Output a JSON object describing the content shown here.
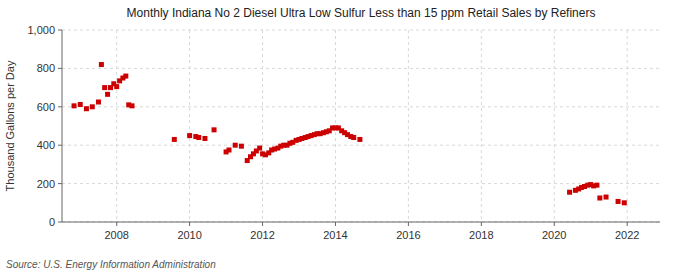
{
  "chart_data": {
    "type": "scatter",
    "title": "Monthly Indiana No 2 Diesel Ultra Low Sulfur Less than 15 ppm Retail Sales by Refiners",
    "ylabel": "Thousand Gallons per Day",
    "source": "Source: U.S. Energy Information Administration",
    "color": "#cc0000",
    "marker": "square",
    "grid": true,
    "xlim": [
      2006.5,
      2022.9
    ],
    "ylim": [
      0,
      1000
    ],
    "xticks": [
      2008,
      2010,
      2012,
      2014,
      2016,
      2018,
      2020,
      2022
    ],
    "yticks": [
      0,
      200,
      400,
      600,
      800,
      {
        "value": 1000,
        "label": "1,000"
      }
    ],
    "x": [
      2006.83,
      2007.0,
      2007.17,
      2007.33,
      2007.5,
      2007.58,
      2007.67,
      2007.75,
      2007.83,
      2007.92,
      2008.0,
      2008.08,
      2008.17,
      2008.25,
      2008.33,
      2008.42,
      2009.58,
      2010.0,
      2010.17,
      2010.25,
      2010.42,
      2010.67,
      2011.0,
      2011.08,
      2011.25,
      2011.42,
      2011.58,
      2011.67,
      2011.75,
      2011.83,
      2011.92,
      2012.0,
      2012.08,
      2012.17,
      2012.25,
      2012.33,
      2012.42,
      2012.5,
      2012.58,
      2012.67,
      2012.75,
      2012.83,
      2012.92,
      2013.0,
      2013.08,
      2013.17,
      2013.25,
      2013.33,
      2013.42,
      2013.5,
      2013.58,
      2013.67,
      2013.75,
      2013.83,
      2013.92,
      2014.0,
      2014.08,
      2014.17,
      2014.25,
      2014.33,
      2014.42,
      2014.5,
      2014.67,
      2020.42,
      2020.58,
      2020.67,
      2020.75,
      2020.83,
      2020.92,
      2021.0,
      2021.08,
      2021.17,
      2021.25,
      2021.42,
      2021.75,
      2021.92
    ],
    "values": [
      605,
      612,
      590,
      600,
      625,
      820,
      700,
      665,
      700,
      720,
      705,
      735,
      750,
      760,
      610,
      605,
      430,
      450,
      445,
      440,
      435,
      480,
      365,
      375,
      400,
      395,
      320,
      340,
      355,
      370,
      385,
      355,
      350,
      360,
      375,
      380,
      385,
      395,
      400,
      400,
      410,
      415,
      425,
      430,
      435,
      440,
      445,
      450,
      455,
      460,
      460,
      465,
      470,
      475,
      490,
      490,
      490,
      475,
      465,
      455,
      445,
      440,
      430,
      155,
      165,
      172,
      180,
      185,
      192,
      195,
      188,
      192,
      125,
      130,
      107,
      100
    ]
  }
}
